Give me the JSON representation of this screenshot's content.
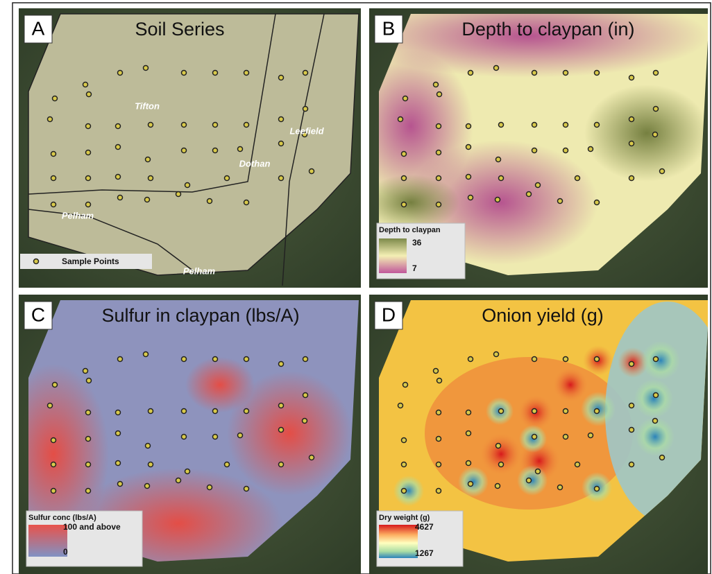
{
  "panels": [
    {
      "letter": "A",
      "title": "Soil Series",
      "map_labels": [
        "Tifton",
        "Dothan",
        "Leefield",
        "Pelham",
        "Pelham"
      ],
      "legend": {
        "items": [
          "Sample Points"
        ]
      }
    },
    {
      "letter": "B",
      "title": "Depth to claypan (in)",
      "legend": {
        "title": "Depth to claypan",
        "max": 36,
        "min": 7
      }
    },
    {
      "letter": "C",
      "title": "Sulfur in claypan (lbs/A)",
      "legend": {
        "title": "Sulfur conc (lbs/A)",
        "max": "100 and above",
        "min": 0
      }
    },
    {
      "letter": "D",
      "title": "Onion yield (g)",
      "legend": {
        "title": "Dry weight (g)",
        "max": 4627,
        "min": 1267
      }
    }
  ]
}
